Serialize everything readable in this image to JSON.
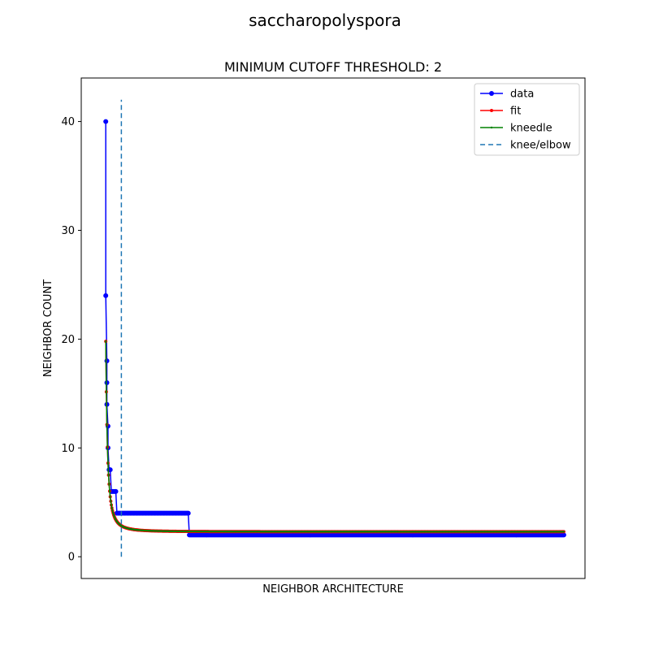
{
  "figure": {
    "suptitle": "saccharopolyspora"
  },
  "chart_data": {
    "type": "line",
    "title": "MINIMUM CUTOFF THRESHOLD: 2",
    "xlabel": "NEIGHBOR ARCHITECTURE",
    "ylabel": "NEIGHBOR COUNT",
    "xlim": [
      -22,
      430
    ],
    "ylim": [
      -2,
      44
    ],
    "yticks": [
      0,
      10,
      20,
      30,
      40
    ],
    "xticks_shown": false,
    "grid": false,
    "legend_position": "top-right",
    "knee": 14,
    "knee_line_yrange": [
      0,
      42
    ],
    "series": [
      {
        "name": "data",
        "color": "#0000ff",
        "marker": "circle",
        "points": [
          [
            0,
            40
          ],
          [
            0,
            24
          ],
          [
            1,
            18
          ],
          [
            1,
            16
          ],
          [
            1,
            14
          ],
          [
            2,
            12
          ],
          [
            2,
            10
          ],
          [
            3,
            8
          ],
          [
            4,
            8
          ],
          [
            5,
            6
          ],
          [
            6,
            6
          ],
          [
            7,
            6
          ],
          [
            8,
            6
          ],
          [
            9,
            6
          ],
          {
            "from": 10,
            "to": 74,
            "value": 4
          },
          {
            "from": 75,
            "to": 411,
            "value": 2
          }
        ]
      },
      {
        "name": "fit",
        "color": "#ff0000",
        "marker": "dot",
        "model": "power-law decay to asymptote",
        "start_value": 19.8,
        "asymptote": 2.3,
        "x_range": [
          0,
          411
        ]
      },
      {
        "name": "kneedle",
        "color": "#008000",
        "marker": "small-dot",
        "model": "same curve as fit",
        "start_value": 19.8,
        "asymptote": 2.3,
        "x_range": [
          0,
          411
        ]
      },
      {
        "name": "knee/elbow",
        "color": "#1f77b4",
        "style": "dashed",
        "x": 14
      }
    ]
  }
}
